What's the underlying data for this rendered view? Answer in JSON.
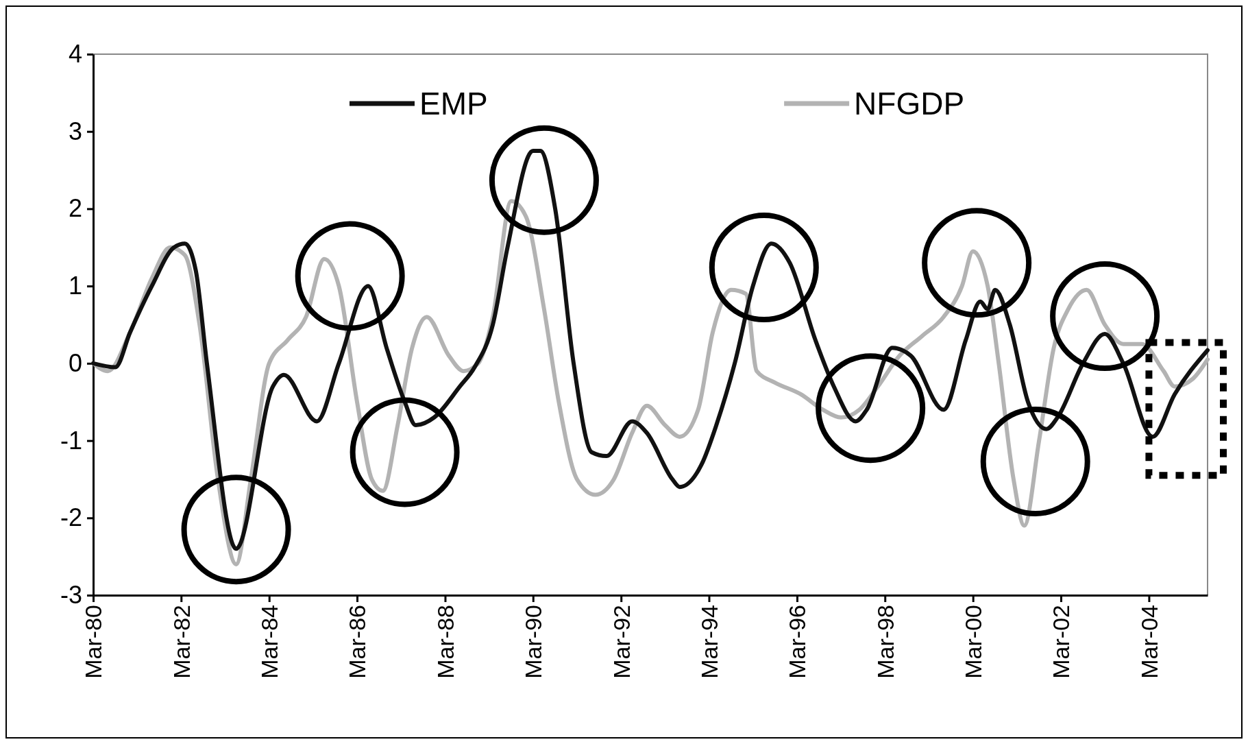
{
  "chart_data": {
    "type": "line",
    "x": [
      "1980-03",
      "1980-09",
      "1981-01",
      "1981-07",
      "1982-01",
      "1982-04",
      "1982-07",
      "1982-10",
      "1983-06",
      "1984-04",
      "1984-07",
      "1985-04",
      "1985-10",
      "1986-06",
      "1986-11",
      "1987-04",
      "1987-07",
      "1987-12",
      "1988-07",
      "1988-11",
      "1989-04",
      "1989-08",
      "1990-03",
      "1990-05",
      "1990-09",
      "1991-02",
      "1991-07",
      "1991-11",
      "1992-06",
      "1992-10",
      "1993-05",
      "1993-07",
      "1994-01",
      "1994-05",
      "1994-10",
      "1995-03",
      "1995-08",
      "1996-01",
      "1996-08",
      "1997-01",
      "1997-07",
      "1997-10",
      "1998-05",
      "1998-10",
      "1999-07",
      "2000-01",
      "2000-05",
      "2000-07",
      "2000-09",
      "2001-01",
      "2001-06",
      "2001-11",
      "2002-02",
      "2002-09",
      "2003-03",
      "2003-08",
      "2004-04",
      "2004-10",
      "2005-07"
    ],
    "series": [
      {
        "name": "EMP",
        "color": "#111111",
        "values": [
          0,
          -0.05,
          0.4,
          1.0,
          1.5,
          1.55,
          1.2,
          0,
          -2.4,
          -0.3,
          -0.15,
          -0.75,
          0,
          1.0,
          0.2,
          -0.5,
          -0.8,
          -0.7,
          -0.3,
          -0.05,
          0.5,
          1.5,
          2.75,
          2.75,
          2.0,
          0,
          -1.15,
          -1.2,
          -0.75,
          -0.9,
          -1.5,
          -1.6,
          -1.3,
          -0.8,
          0,
          1.0,
          1.55,
          1.3,
          0.3,
          -0.3,
          -0.75,
          -0.6,
          0.2,
          0.1,
          -0.6,
          0.3,
          0.8,
          0.7,
          0.95,
          0.5,
          -0.5,
          -0.85,
          -0.7,
          0,
          0.38,
          0,
          -0.95,
          -0.4,
          0.17
        ]
      },
      {
        "name": "NFGDP",
        "color": "#b3b3b3",
        "x": [
          "1980-03",
          "1980-07",
          "1981-01",
          "1981-07",
          "1981-12",
          "1982-04",
          "1982-08",
          "1983-01",
          "1983-06",
          "1983-10",
          "1984-03",
          "1984-08",
          "1985-01",
          "1985-06",
          "1985-10",
          "1986-03",
          "1986-07",
          "1986-10",
          "1987-02",
          "1987-06",
          "1987-10",
          "1988-04",
          "1988-08",
          "1988-12",
          "1989-04",
          "1989-09",
          "1990-01",
          "1990-06",
          "1990-10",
          "1991-03",
          "1991-08",
          "1992-01",
          "1992-06",
          "1992-10",
          "1993-03",
          "1993-07",
          "1993-12",
          "1994-04",
          "1994-09",
          "1995-01",
          "1995-04",
          "1995-09",
          "1996-04",
          "1996-10",
          "1997-03",
          "1997-08",
          "1998-01",
          "1998-07",
          "1999-01",
          "1999-07",
          "1999-12",
          "2000-03",
          "2000-07",
          "2000-10",
          "2001-02",
          "2001-05",
          "2001-09",
          "2002-01",
          "2002-05",
          "2002-10",
          "2003-03",
          "2003-08",
          "2004-01",
          "2004-07",
          "2004-10",
          "2005-03",
          "2005-07"
        ],
        "values": [
          0,
          -0.1,
          0.4,
          1.1,
          1.5,
          1.4,
          0.5,
          -1.5,
          -2.6,
          -1.5,
          0,
          0.3,
          0.6,
          1.35,
          1.0,
          -0.5,
          -1.5,
          -1.65,
          -0.8,
          0.2,
          0.6,
          0.1,
          -0.1,
          0,
          0.6,
          2.1,
          1.9,
          0.7,
          -0.5,
          -1.5,
          -1.7,
          -1.5,
          -0.9,
          -0.55,
          -0.8,
          -0.95,
          -0.6,
          0.4,
          0.95,
          0.9,
          -0.1,
          -0.25,
          -0.4,
          -0.6,
          -0.7,
          -0.6,
          -0.3,
          0.1,
          0.35,
          0.6,
          1.0,
          1.45,
          1.0,
          0,
          -1.5,
          -2.1,
          -1.0,
          0.2,
          0.7,
          0.95,
          0.5,
          0.25,
          0.25,
          -0.1,
          -0.3,
          -0.2,
          0.05
        ]
      }
    ],
    "xlim": [
      "1980-03",
      "2005-07"
    ],
    "xticks": [
      {
        "value": "1980-03",
        "label": "Mar-80"
      },
      {
        "value": "1982-03",
        "label": "Mar-82"
      },
      {
        "value": "1984-03",
        "label": "Mar-84"
      },
      {
        "value": "1986-03",
        "label": "Mar-86"
      },
      {
        "value": "1988-03",
        "label": "Mar-88"
      },
      {
        "value": "1990-03",
        "label": "Mar-90"
      },
      {
        "value": "1992-03",
        "label": "Mar-92"
      },
      {
        "value": "1994-03",
        "label": "Mar-94"
      },
      {
        "value": "1996-03",
        "label": "Mar-96"
      },
      {
        "value": "1998-03",
        "label": "Mar-98"
      },
      {
        "value": "2000-03",
        "label": "Mar-00"
      },
      {
        "value": "2002-03",
        "label": "Mar-02"
      },
      {
        "value": "2004-03",
        "label": "Mar-04"
      }
    ],
    "ylim": [
      -3,
      4
    ],
    "yticks": [
      -3,
      -2,
      -1,
      0,
      1,
      2,
      3,
      4
    ],
    "grid": false,
    "legend": "top",
    "marker": "none",
    "line_style": "solid"
  }
}
